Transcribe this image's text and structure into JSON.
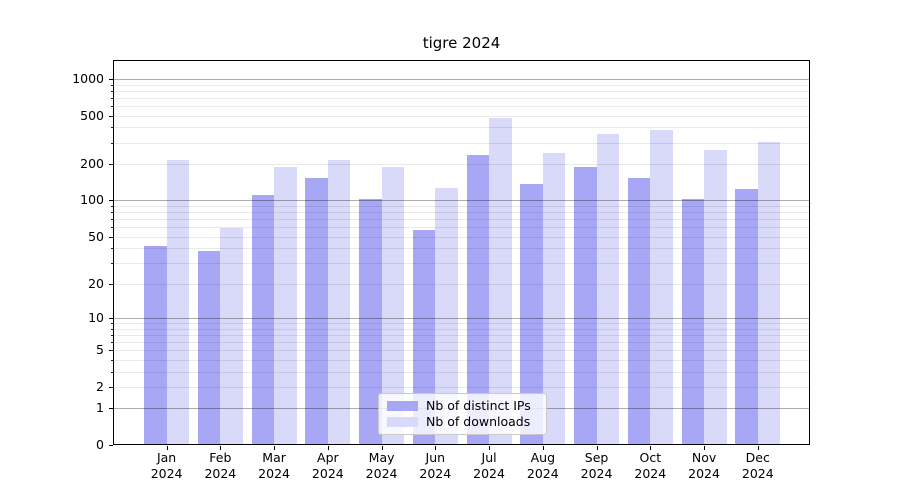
{
  "chart_data": {
    "type": "bar",
    "title": "tigre 2024",
    "categories": [
      "Jan 2024",
      "Feb 2024",
      "Mar 2024",
      "Apr 2024",
      "May 2024",
      "Jun 2024",
      "Jul 2024",
      "Aug 2024",
      "Sep 2024",
      "Oct 2024",
      "Nov 2024",
      "Dec 2024"
    ],
    "series": [
      {
        "name": "Nb of distinct IPs",
        "color": "#a7a7f6",
        "values": [
          42,
          38,
          112,
          153,
          102,
          57,
          237,
          137,
          188,
          154,
          102,
          124
        ]
      },
      {
        "name": "Nb of downloads",
        "color": "#d9d9f9",
        "values": [
          215,
          59,
          190,
          215,
          190,
          126,
          475,
          245,
          351,
          381,
          261,
          302
        ]
      }
    ],
    "yscale": "log10(value+1)",
    "ylim": [
      0,
      1430
    ],
    "yticks": [
      0,
      1,
      2,
      5,
      10,
      20,
      50,
      100,
      200,
      500,
      1000
    ],
    "major_grid_values": [
      1,
      10,
      100,
      1000
    ],
    "minor_grid_values": [
      2,
      3,
      4,
      5,
      6,
      7,
      8,
      9,
      20,
      30,
      40,
      50,
      60,
      70,
      80,
      90,
      200,
      300,
      400,
      500,
      600,
      700,
      800,
      900
    ],
    "grid": true,
    "legend_position": "lower center",
    "xlabel": "",
    "ylabel": ""
  }
}
